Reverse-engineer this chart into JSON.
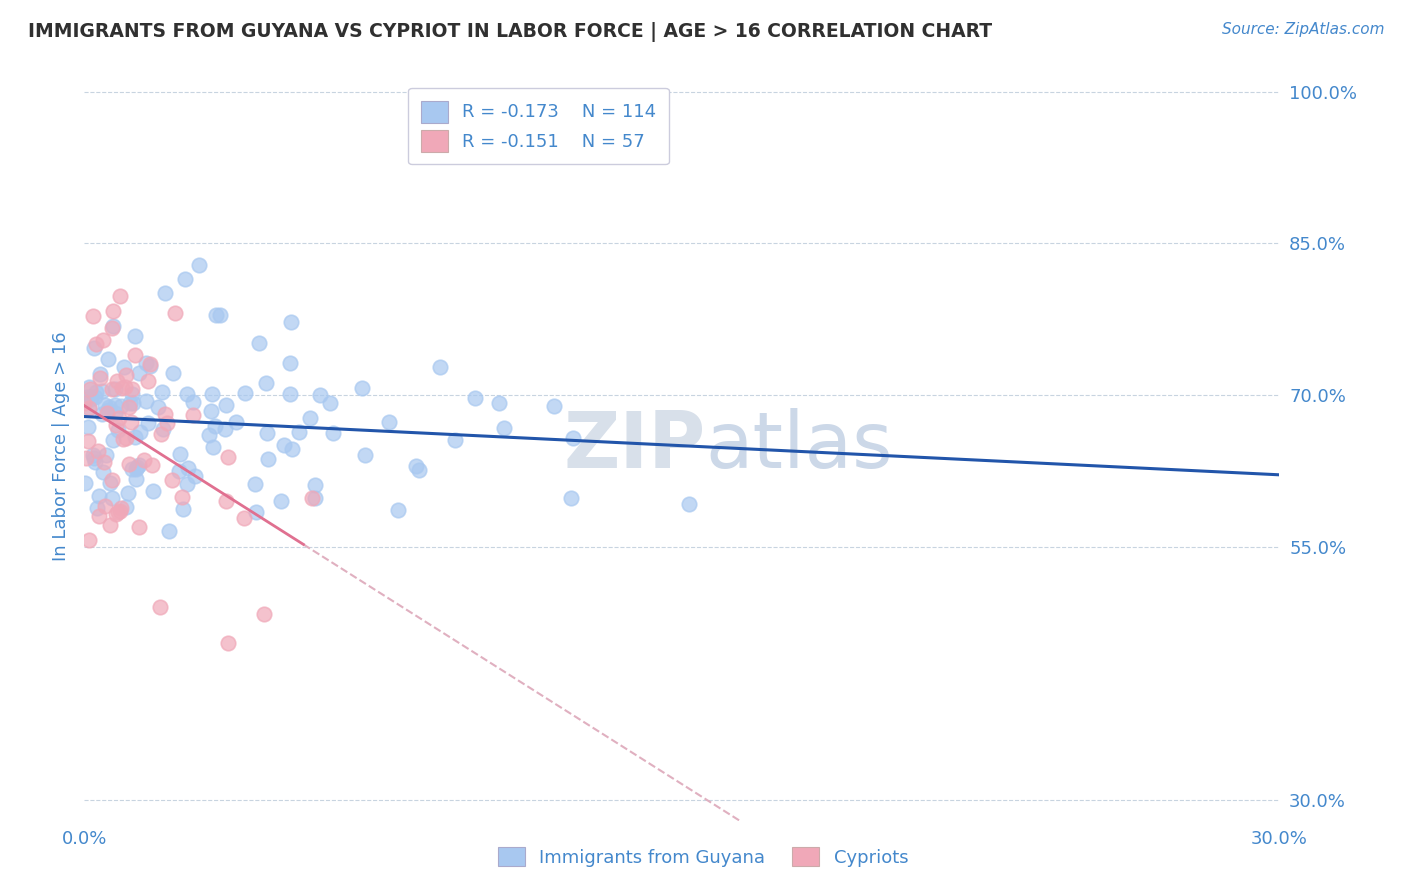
{
  "title": "IMMIGRANTS FROM GUYANA VS CYPRIOT IN LABOR FORCE | AGE > 16 CORRELATION CHART",
  "source_text": "Source: ZipAtlas.com",
  "ylabel": "In Labor Force | Age > 16",
  "xlim": [
    0.0,
    0.3
  ],
  "ylim": [
    0.28,
    1.02
  ],
  "xticks": [
    0.0,
    0.05,
    0.1,
    0.15,
    0.2,
    0.25,
    0.3
  ],
  "xtick_labels": [
    "0.0%",
    "",
    "",
    "",
    "",
    "",
    "30.0%"
  ],
  "ytick_vals": [
    1.0,
    0.85,
    0.7,
    0.55,
    0.3
  ],
  "guyana_R": -0.173,
  "guyana_N": 114,
  "cypriot_R": -0.151,
  "cypriot_N": 57,
  "guyana_color": "#a8c8f0",
  "cypriot_color": "#f0a8b8",
  "guyana_line_color": "#2255aa",
  "cypriot_line_color": "#e07090",
  "cypriot_dash_color": "#e0b0c0",
  "bg_color": "#ffffff",
  "grid_color": "#c8d4e0",
  "title_color": "#303030",
  "axis_label_color": "#4488cc",
  "watermark_color": "#ccd8e8",
  "legend_label1": "Immigrants from Guyana",
  "legend_label2": "Cypriots"
}
